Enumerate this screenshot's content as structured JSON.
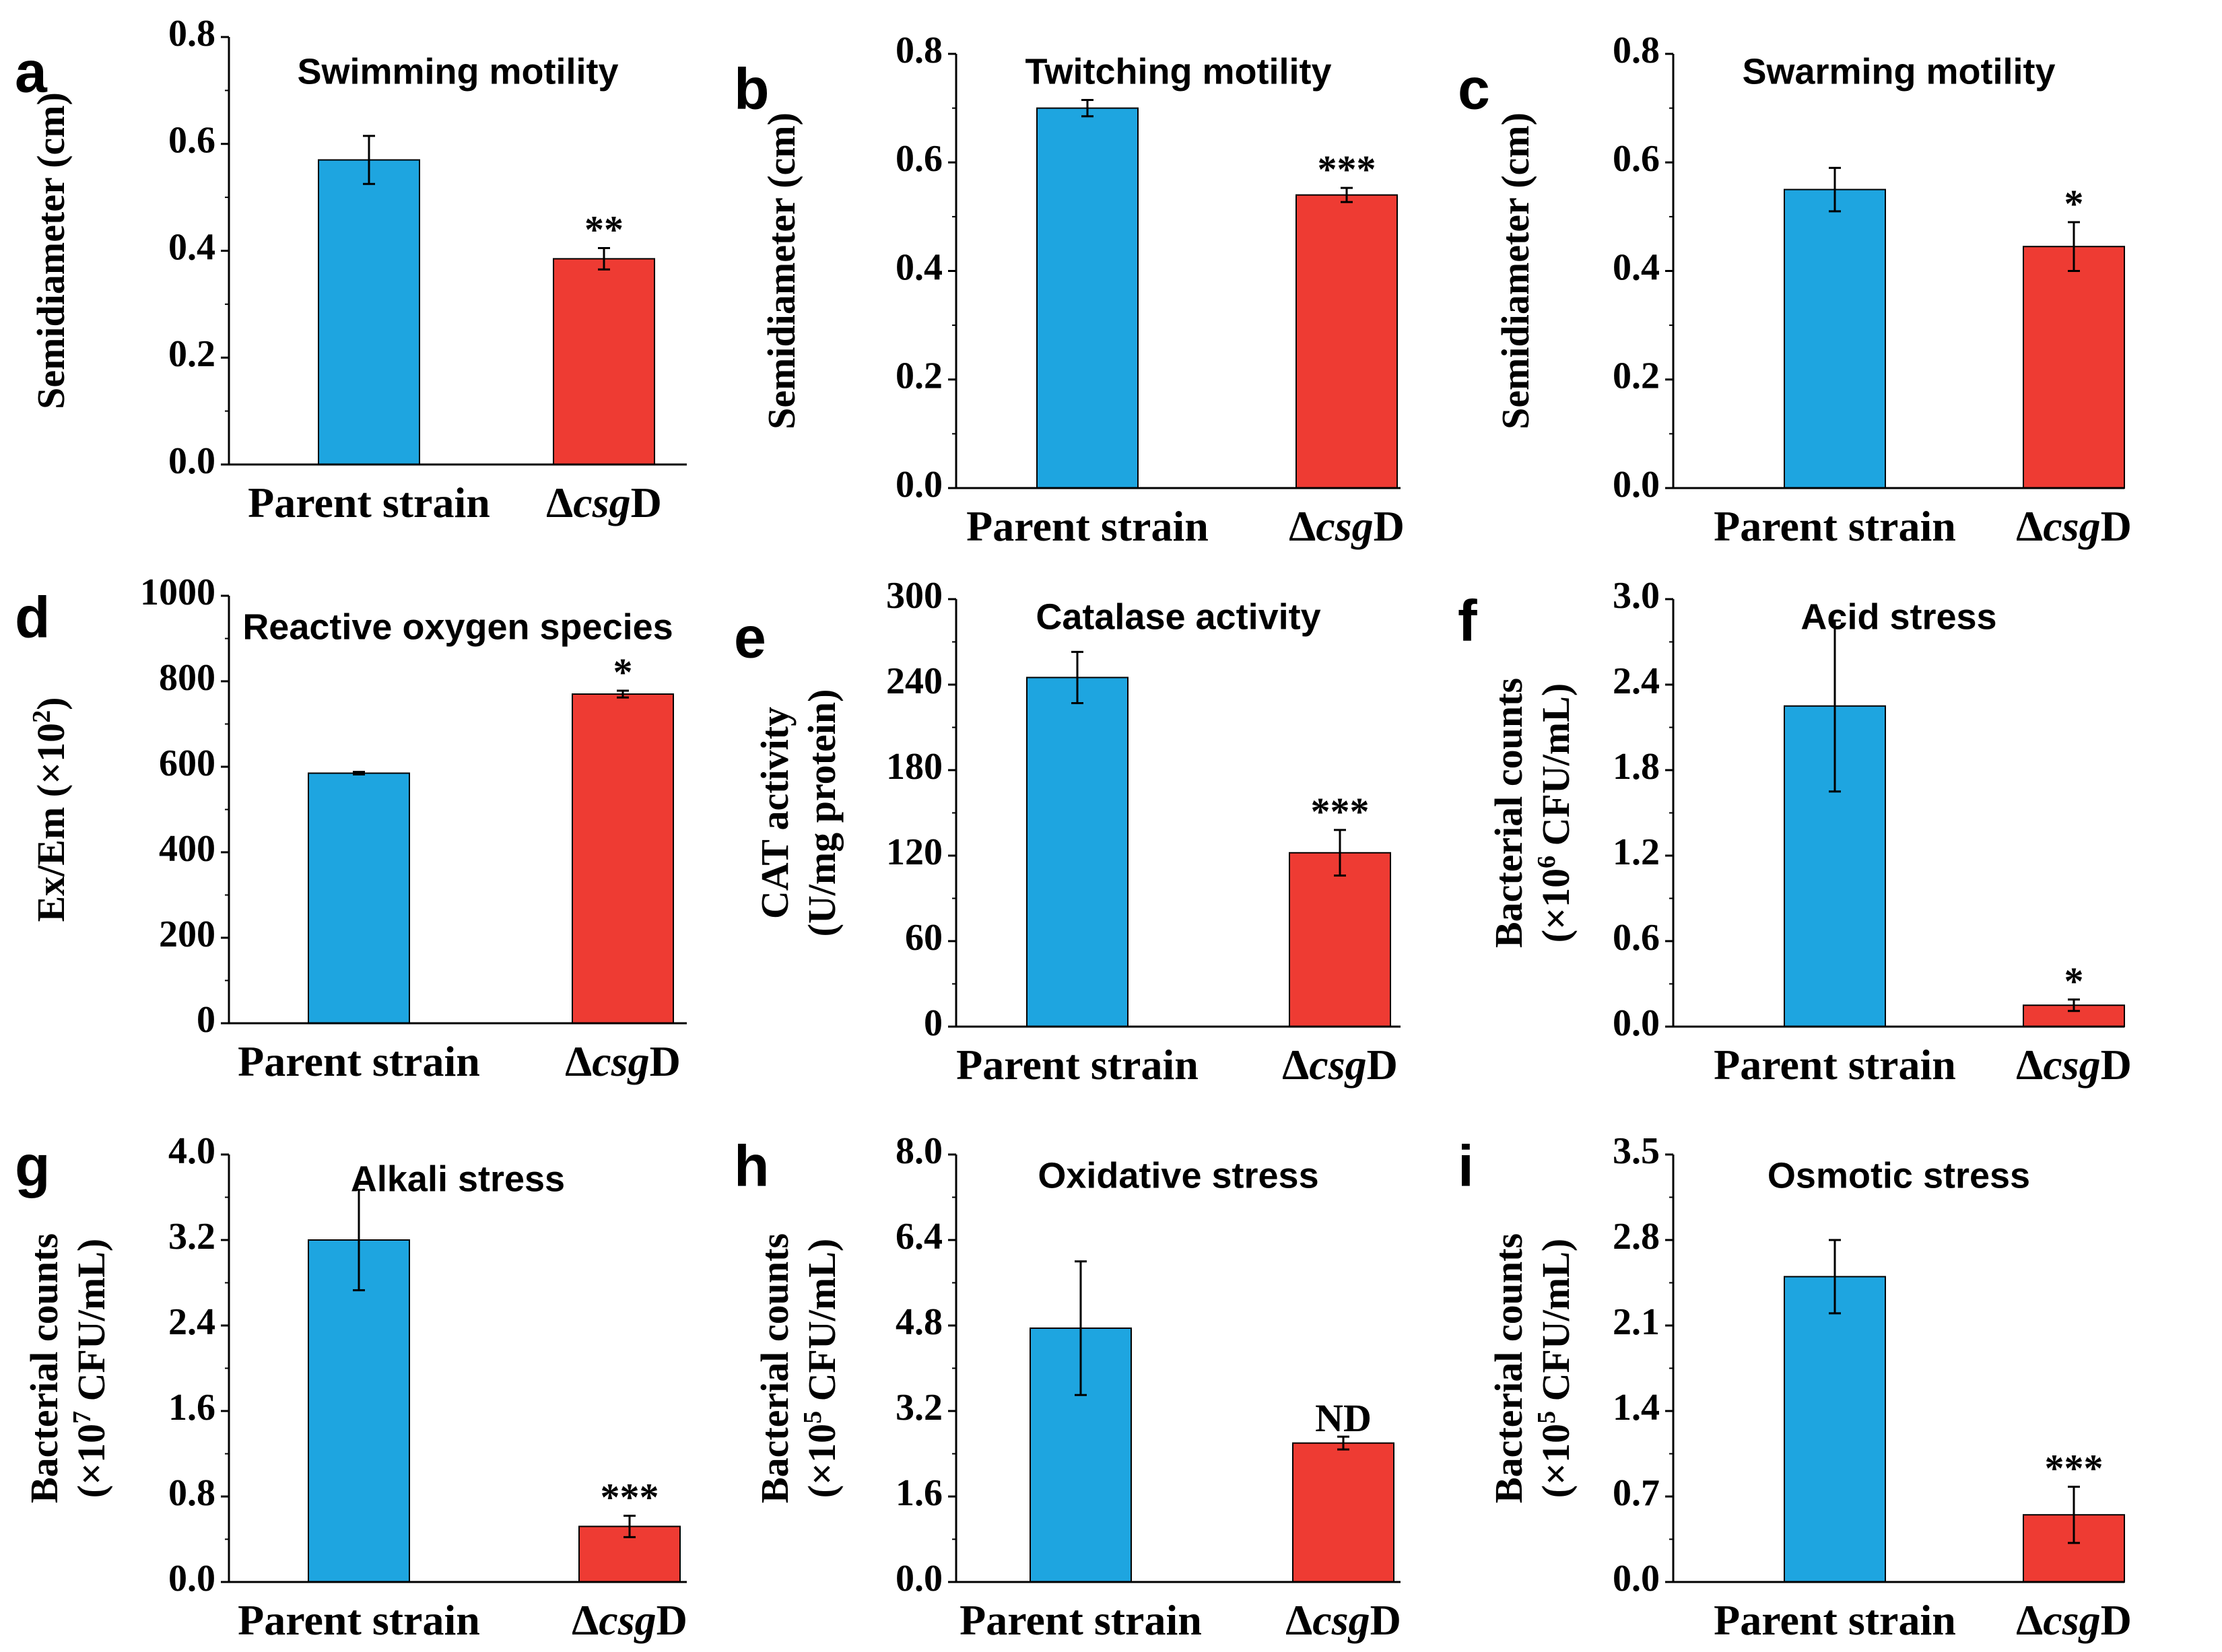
{
  "colors": {
    "parent": "#1EA5E0",
    "mutant": "#EE3B33",
    "axis": "#000000"
  },
  "chart_data": [
    {
      "panel": "a",
      "type": "bar",
      "title": "Swimming motility",
      "ylabel": [
        "Semidiameter (cm)"
      ],
      "ylim": [
        0,
        0.8
      ],
      "yticks": [
        "0.0",
        "0.2",
        "0.4",
        "0.6",
        "0.8"
      ],
      "categories": [
        {
          "label": "Parent strain",
          "value": 0.57,
          "error": 0.045,
          "sig": ""
        },
        {
          "label_prefix": "Δ",
          "label_italic": "csg",
          "label_suffix": "D",
          "value": 0.385,
          "error": 0.02,
          "sig": "**"
        }
      ]
    },
    {
      "panel": "b",
      "type": "bar",
      "title": "Twitching motility",
      "ylabel": [
        "Semidiameter (cm)"
      ],
      "ylim": [
        0,
        0.8
      ],
      "yticks": [
        "0.0",
        "0.2",
        "0.4",
        "0.6",
        "0.8"
      ],
      "categories": [
        {
          "label": "Parent strain",
          "value": 0.7,
          "error": 0.015,
          "sig": ""
        },
        {
          "label_prefix": "Δ",
          "label_italic": "csg",
          "label_suffix": "D",
          "value": 0.54,
          "error": 0.013,
          "sig": "***"
        }
      ]
    },
    {
      "panel": "c",
      "type": "bar",
      "title": "Swarming motility",
      "ylabel": [
        "Semidiameter (cm)"
      ],
      "ylim": [
        0,
        0.8
      ],
      "yticks": [
        "0.0",
        "0.2",
        "0.4",
        "0.6",
        "0.8"
      ],
      "categories": [
        {
          "label": "Parent strain",
          "value": 0.55,
          "error": 0.04,
          "sig": ""
        },
        {
          "label_prefix": "Δ",
          "label_italic": "csg",
          "label_suffix": "D",
          "value": 0.445,
          "error": 0.045,
          "sig": "*"
        }
      ]
    },
    {
      "panel": "d",
      "type": "bar",
      "title": "Reactive oxygen species",
      "ylabel": [
        "Ex/Em (×10",
        "2",
        ")"
      ],
      "ylim": [
        0,
        1000
      ],
      "yticks": [
        "0",
        "200",
        "400",
        "600",
        "800",
        "1000"
      ],
      "categories": [
        {
          "label": "Parent strain",
          "value": 585,
          "error": 3,
          "sig": ""
        },
        {
          "label_prefix": "Δ",
          "label_italic": "csg",
          "label_suffix": "D",
          "value": 770,
          "error": 8,
          "sig": "*"
        }
      ]
    },
    {
      "panel": "e",
      "type": "bar",
      "title": "Catalase activity",
      "ylabel": [
        "CAT activity",
        "(U/mg protein)"
      ],
      "ylim": [
        0,
        300
      ],
      "yticks": [
        "0",
        "60",
        "120",
        "180",
        "240",
        "300"
      ],
      "categories": [
        {
          "label": "Parent strain",
          "value": 245,
          "error": 18,
          "sig": ""
        },
        {
          "label_prefix": "Δ",
          "label_italic": "csg",
          "label_suffix": "D",
          "value": 122,
          "error": 16,
          "sig": "***"
        }
      ]
    },
    {
      "panel": "f",
      "type": "bar",
      "title": "Acid stress",
      "ylabel": [
        "Bacterial counts",
        "(×10",
        "6",
        " CFU/mL)"
      ],
      "ylim": [
        0,
        3.0
      ],
      "yticks": [
        "0.0",
        "0.6",
        "1.2",
        "1.8",
        "2.4",
        "3.0"
      ],
      "categories": [
        {
          "label": "Parent strain",
          "value": 2.25,
          "error": 0.6,
          "sig": ""
        },
        {
          "label_prefix": "Δ",
          "label_italic": "csg",
          "label_suffix": "D",
          "value": 0.15,
          "error": 0.04,
          "sig": "*"
        }
      ]
    },
    {
      "panel": "g",
      "type": "bar",
      "title": "Alkali stress",
      "ylabel": [
        "Bacterial counts",
        "(×10",
        "7",
        " CFU/mL)"
      ],
      "ylim": [
        0,
        4.0
      ],
      "yticks": [
        "0.0",
        "0.8",
        "1.6",
        "2.4",
        "3.2",
        "4.0"
      ],
      "categories": [
        {
          "label": "Parent strain",
          "value": 3.2,
          "error": 0.47,
          "sig": ""
        },
        {
          "label_prefix": "Δ",
          "label_italic": "csg",
          "label_suffix": "D",
          "value": 0.52,
          "error": 0.1,
          "sig": "***"
        }
      ]
    },
    {
      "panel": "h",
      "type": "bar",
      "title": "Oxidative stress",
      "ylabel": [
        "Bacterial counts",
        "(×10",
        "5",
        " CFU/mL)"
      ],
      "ylim": [
        0,
        8.0
      ],
      "yticks": [
        "0.0",
        "1.6",
        "3.2",
        "4.8",
        "6.4",
        "8.0"
      ],
      "categories": [
        {
          "label": "Parent strain",
          "value": 4.75,
          "error": 1.25,
          "sig": ""
        },
        {
          "label_prefix": "Δ",
          "label_italic": "csg",
          "label_suffix": "D",
          "value": 2.6,
          "error": 0.12,
          "sig": "ND"
        }
      ]
    },
    {
      "panel": "i",
      "type": "bar",
      "title": "Osmotic stress",
      "ylabel": [
        "Bacterial counts",
        "(×10",
        "5",
        " CFU/mL)"
      ],
      "ylim": [
        0,
        3.5
      ],
      "yticks": [
        "0.0",
        "0.7",
        "1.4",
        "2.1",
        "2.8",
        "3.5"
      ],
      "categories": [
        {
          "label": "Parent strain",
          "value": 2.5,
          "error": 0.3,
          "sig": ""
        },
        {
          "label_prefix": "Δ",
          "label_italic": "csg",
          "label_suffix": "D",
          "value": 0.55,
          "error": 0.23,
          "sig": "***"
        }
      ]
    }
  ]
}
